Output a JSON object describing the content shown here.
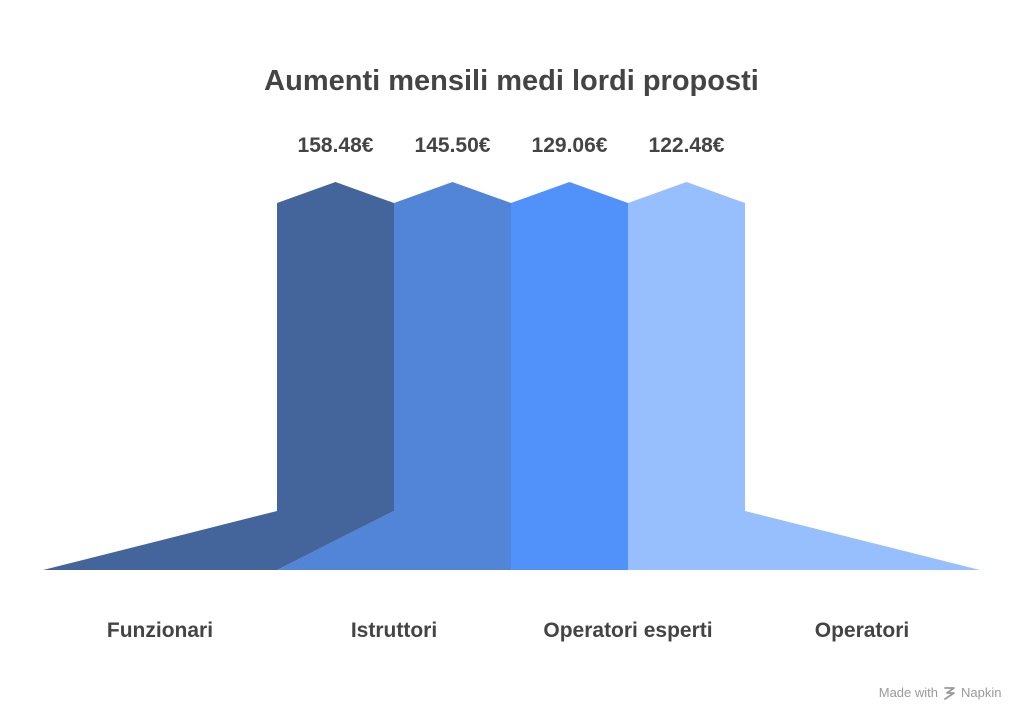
{
  "chart_data": {
    "type": "bar",
    "title": "Aumenti mensili medi lordi proposti",
    "categories": [
      "Funzionari",
      "Istruttori",
      "Operatori esperti",
      "Operatori"
    ],
    "values": [
      158.48,
      145.5,
      129.06,
      122.48
    ],
    "value_labels": [
      "158.48€",
      "145.50€",
      "129.06€",
      "122.48€"
    ],
    "unit": "€",
    "colors": [
      "#44659b",
      "#5285d7",
      "#5191fa",
      "#98bffd"
    ],
    "grid": false,
    "legend": "none"
  },
  "colors": {
    "title": "#444444",
    "labels": "#444444",
    "watermark": "#9a9a9a"
  },
  "watermark": {
    "made_with": "Made with",
    "brand": "Napkin",
    "icon": "napkin-logo-icon"
  }
}
